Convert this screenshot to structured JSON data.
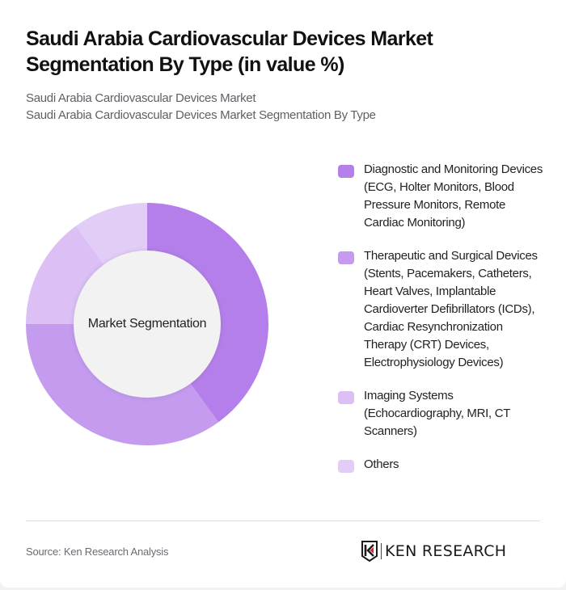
{
  "header": {
    "title": "Saudi Arabia Cardiovascular Devices Market Segmentation By Type (in value %)",
    "subtitle_1": "Saudi Arabia Cardiovascular Devices Market",
    "subtitle_2": "Saudi Arabia Cardiovascular Devices Market Segmentation By Type"
  },
  "chart": {
    "center_label": "Market Segmentation"
  },
  "legend": [
    {
      "label": "Diagnostic and Monitoring Devices (ECG, Holter Monitors, Blood Pressure Monitors, Remote Cardiac Monitoring)",
      "color": "#b47fea"
    },
    {
      "label": "Therapeutic and Surgical Devices (Stents, Pacemakers, Catheters, Heart Valves, Implantable Cardioverter Defibrillators (ICDs), Cardiac Resynchronization Therapy (CRT) Devices, Electrophysiology Devices)",
      "color": "#c49bee"
    },
    {
      "label": "Imaging Systems (Echocardiography, MRI, CT Scanners)",
      "color": "#dbbff5"
    },
    {
      "label": "Others",
      "color": "#e2cdf7"
    }
  ],
  "footer": {
    "source": "Source: Ken Research Analysis",
    "logo_text": "KEN RESEARCH"
  },
  "chart_data": {
    "type": "pie",
    "variant": "donut",
    "title": "Saudi Arabia Cardiovascular Devices Market Segmentation By Type (in value %)",
    "center_label": "Market Segmentation",
    "categories": [
      "Diagnostic and Monitoring Devices (ECG, Holter Monitors, Blood Pressure Monitors, Remote Cardiac Monitoring)",
      "Therapeutic and Surgical Devices (Stents, Pacemakers, Catheters, Heart Valves, Implantable Cardioverter Defibrillators (ICDs), Cardiac Resynchronization Therapy (CRT) Devices, Electrophysiology Devices)",
      "Imaging Systems (Echocardiography, MRI, CT Scanners)",
      "Others"
    ],
    "values": [
      40,
      35,
      15,
      10
    ],
    "colors": [
      "#b47fea",
      "#c49bee",
      "#dbbff5",
      "#e2cdf7"
    ],
    "start_angle": "12 o'clock, clockwise",
    "legend_position": "right",
    "data_labels": false
  }
}
